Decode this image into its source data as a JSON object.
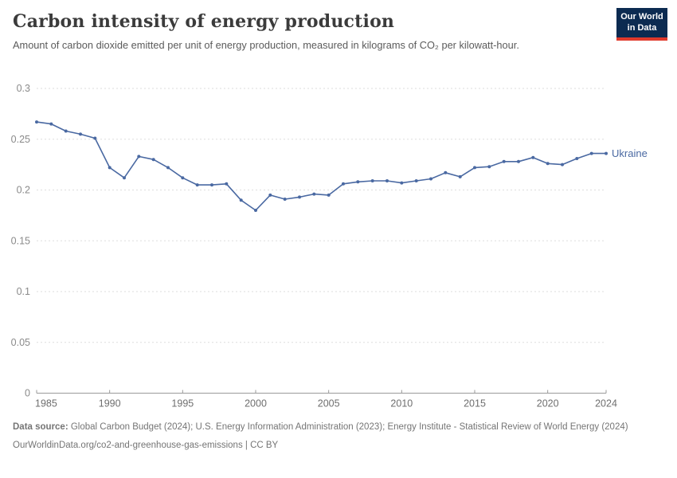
{
  "header": {
    "title": "Carbon intensity of energy production",
    "subtitle": "Amount of carbon dioxide emitted per unit of energy production, measured in kilograms of CO₂ per kilowatt-hour.",
    "logo": {
      "line1": "Our World",
      "line2": "in Data"
    }
  },
  "chart_data": {
    "type": "line",
    "title": "Carbon intensity of energy production",
    "x": [
      1985,
      1986,
      1987,
      1988,
      1989,
      1990,
      1991,
      1992,
      1993,
      1994,
      1995,
      1996,
      1997,
      1998,
      1999,
      2000,
      2001,
      2002,
      2003,
      2004,
      2005,
      2006,
      2007,
      2008,
      2009,
      2010,
      2011,
      2012,
      2013,
      2014,
      2015,
      2016,
      2017,
      2018,
      2019,
      2020,
      2021,
      2022,
      2023,
      2024
    ],
    "series": [
      {
        "name": "Ukraine",
        "values": [
          0.267,
          0.265,
          0.258,
          0.255,
          0.251,
          0.222,
          0.212,
          0.233,
          0.23,
          0.222,
          0.212,
          0.205,
          0.205,
          0.206,
          0.19,
          0.18,
          0.195,
          0.191,
          0.193,
          0.196,
          0.195,
          0.206,
          0.208,
          0.209,
          0.209,
          0.207,
          0.209,
          0.211,
          0.217,
          0.213,
          0.222,
          0.223,
          0.228,
          0.228,
          0.232,
          0.226,
          0.225,
          0.231,
          0.236,
          0.236
        ]
      }
    ],
    "xlabel": "",
    "ylabel": "",
    "xlim": [
      1985,
      2024
    ],
    "ylim": [
      0,
      0.3
    ],
    "x_ticks": [
      1985,
      1990,
      1995,
      2000,
      2005,
      2010,
      2015,
      2020,
      2024
    ],
    "y_ticks": [
      0,
      0.05,
      0.1,
      0.15,
      0.2,
      0.25,
      0.3
    ],
    "y_tick_labels": [
      "0",
      "0.05",
      "0.1",
      "0.15",
      "0.2",
      "0.25",
      "0.3"
    ],
    "grid": "horizontal-dashed",
    "legend_position": "end-of-line",
    "end_label": "Ukraine",
    "colors": {
      "line": "#4a69a2",
      "grid": "#dddddd",
      "axis": "#9a9a9a",
      "y_tick_label": "#8a8a8a",
      "x_tick_label": "#6e6e6e"
    }
  },
  "footer": {
    "source_label": "Data source:",
    "source_text": " Global Carbon Budget (2024); U.S. Energy Information Administration (2023); Energy Institute - Statistical Review of World Energy (2024)",
    "cc_line": "OurWorldinData.org/co2-and-greenhouse-gas-emissions | CC BY"
  }
}
